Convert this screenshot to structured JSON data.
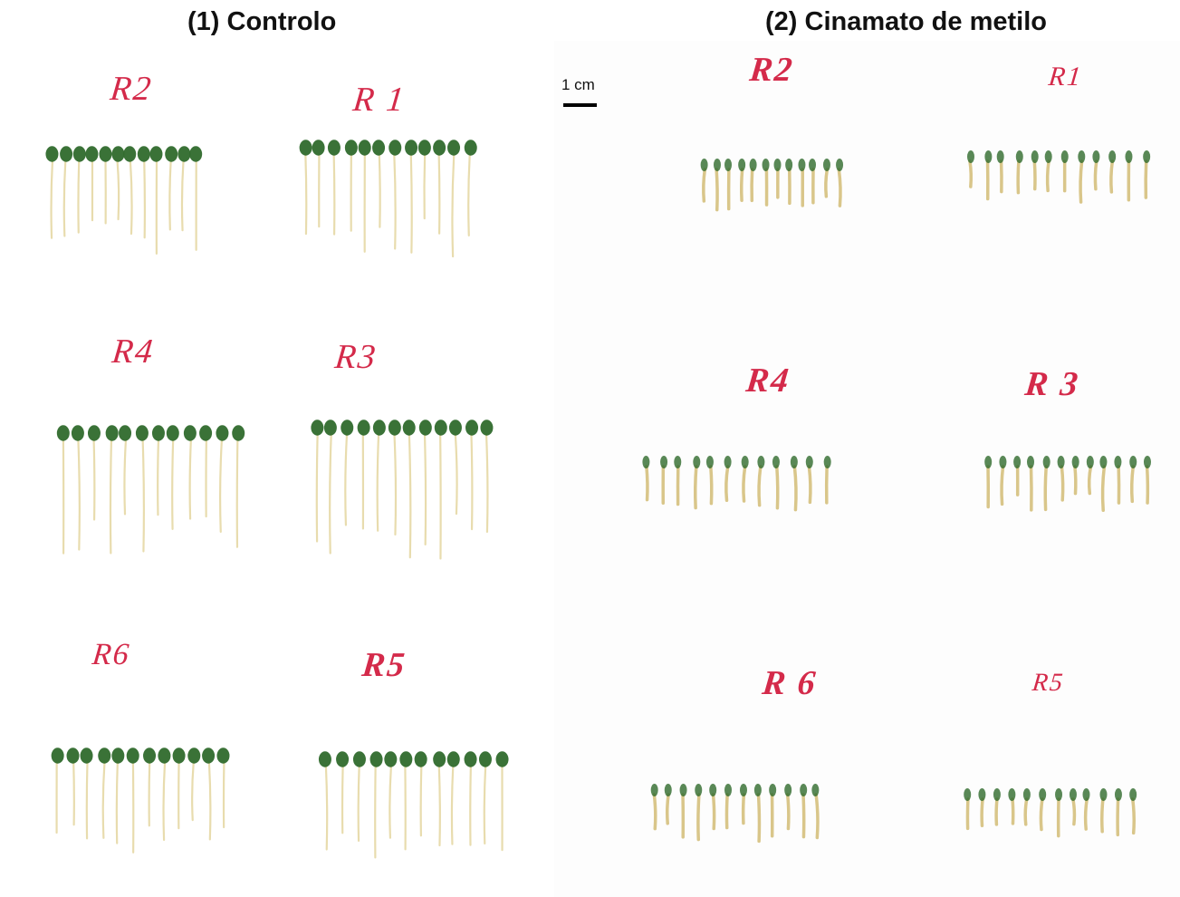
{
  "panels": [
    {
      "title": "(1) Controlo",
      "groups": [
        {
          "label": "R2",
          "seedlings": 12
        },
        {
          "label": "R 1",
          "seedlings": 12
        },
        {
          "label": "R4",
          "seedlings": 12
        },
        {
          "label": "R3",
          "seedlings": 12
        },
        {
          "label": "R6",
          "seedlings": 12
        },
        {
          "label": "R5",
          "seedlings": 12
        }
      ]
    },
    {
      "title": "(2) Cinamato de metilo",
      "groups": [
        {
          "label": "R2",
          "seedlings": 12
        },
        {
          "label": "R1",
          "seedlings": 12
        },
        {
          "label": "R4",
          "seedlings": 12
        },
        {
          "label": "R 3",
          "seedlings": 12
        },
        {
          "label": "R 6",
          "seedlings": 12
        },
        {
          "label": "R5",
          "seedlings": 12
        }
      ]
    }
  ],
  "scale_bar": {
    "label": "1 cm"
  },
  "colors": {
    "label_ink": "#d42a4a",
    "cotyledon": "#2f6a2c",
    "stem": "#e8dcae",
    "stem_treated": "#d9c68a"
  }
}
